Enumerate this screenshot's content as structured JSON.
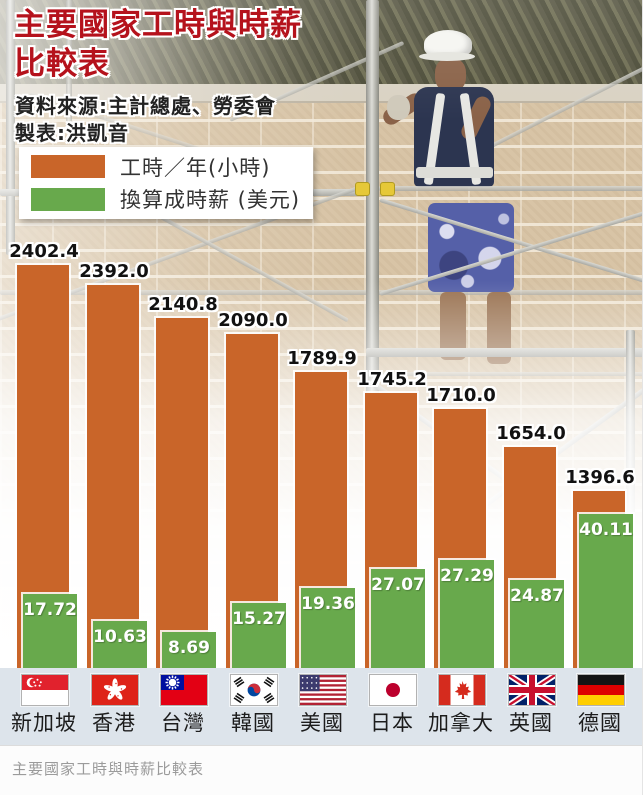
{
  "header": {
    "title": "主要國家工時與時薪\n比較表",
    "source": "資料來源:主計總處、勞委會",
    "maker": "製表:洪凱音"
  },
  "legend": {
    "hours_label": "工時／年(小時)",
    "wage_label": "換算成時薪 (美元)"
  },
  "caption": "主要國家工時與時薪比較表",
  "colors": {
    "hours_bar": "#c96529",
    "wage_bar": "#68a94c",
    "title_red": "#b5121c",
    "flag_row_bg": "#dde4eb"
  },
  "chart_data": {
    "type": "bar",
    "title": "主要國家工時與時薪比較表",
    "categories": [
      "新加坡",
      "香港",
      "台灣",
      "韓國",
      "美國",
      "日本",
      "加拿大",
      "英國",
      "德國"
    ],
    "flags": [
      "singapore",
      "hong-kong",
      "taiwan",
      "south-korea",
      "usa",
      "japan",
      "canada",
      "uk",
      "germany"
    ],
    "series": [
      {
        "name": "工時／年(小時)",
        "color": "#c96529",
        "decimals": 1,
        "values": [
          2402.4,
          2392.0,
          2140.8,
          2090.0,
          1789.9,
          1745.2,
          1710.0,
          1654.0,
          1396.6
        ]
      },
      {
        "name": "換算成時薪 (美元)",
        "color": "#68a94c",
        "decimals": 2,
        "values": [
          17.72,
          10.63,
          8.69,
          15.27,
          19.36,
          27.07,
          27.29,
          24.87,
          40.11
        ]
      }
    ],
    "legend_position": "top-left",
    "grid": false,
    "layout": {
      "baseline_y": 668,
      "column_centers": [
        44,
        114,
        183,
        253,
        322,
        392,
        461,
        531,
        600
      ],
      "hours_bar_tops": [
        265,
        285,
        318,
        334,
        372,
        393,
        409,
        447,
        491
      ],
      "wage_bar_tops": [
        594,
        621,
        632,
        603,
        588,
        569,
        560,
        580,
        514
      ],
      "hours_bar_width": 52,
      "hours_bar_offset": -27,
      "wage_bar_width": 54,
      "wage_bar_offset": -21
    }
  }
}
